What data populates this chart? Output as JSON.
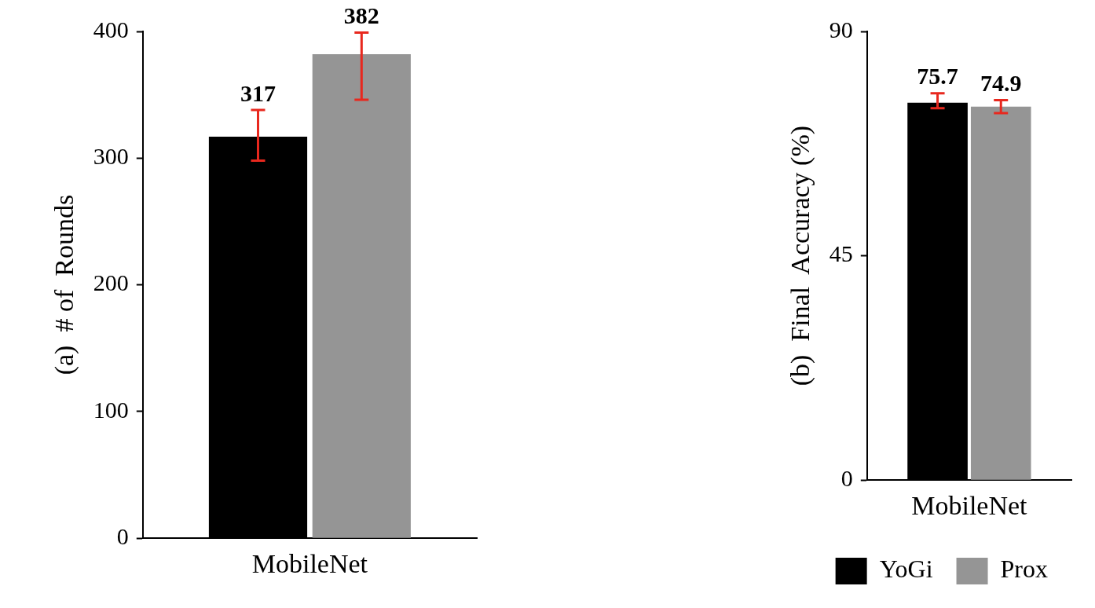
{
  "chart_data": [
    {
      "type": "bar",
      "ylabel": "(a)  # of  Rounds",
      "categories": [
        "MobileNet"
      ],
      "ylim": [
        0,
        400
      ],
      "yticks": [
        0,
        100,
        200,
        300,
        400
      ],
      "grid": false,
      "data_labels": true,
      "series": [
        {
          "color": "#000000",
          "values": [
            317
          ],
          "errors": [
            [
              298,
              338
            ]
          ]
        },
        {
          "color": "#959595",
          "values": [
            382
          ],
          "errors": [
            [
              346,
              399
            ]
          ]
        }
      ]
    },
    {
      "type": "bar",
      "ylabel": "(b)  Final  Accuracy (%)",
      "categories": [
        "MobileNet"
      ],
      "ylim": [
        0,
        90
      ],
      "yticks": [
        0,
        45,
        90
      ],
      "grid": false,
      "data_labels": true,
      "legend": "bottom",
      "series": [
        {
          "name": "YoGi",
          "color": "#000000",
          "values": [
            75.7
          ],
          "errors": [
            [
              74.6,
              77.6
            ]
          ]
        },
        {
          "name": "Prox",
          "color": "#959595",
          "values": [
            74.9
          ],
          "errors": [
            [
              73.6,
              76.2
            ]
          ]
        }
      ]
    }
  ]
}
